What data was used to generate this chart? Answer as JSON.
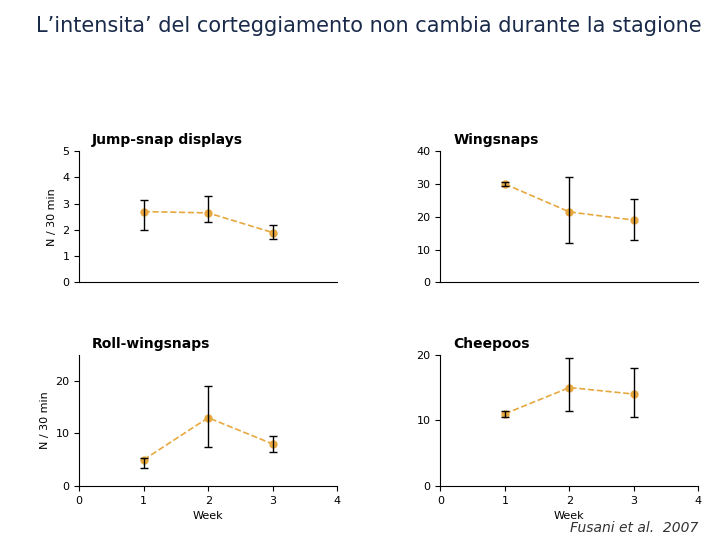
{
  "title": "L’intensita’ del corteggiamento non cambia durante la stagione",
  "attribution": "Fusani et al.  2007",
  "color": "#E8A840",
  "subplots": [
    {
      "title": "Jump-snap displays",
      "weeks": [
        1,
        2,
        3
      ],
      "values": [
        2.7,
        2.65,
        1.9
      ],
      "yerr_lo": [
        0.7,
        0.35,
        0.25
      ],
      "yerr_hi": [
        0.45,
        0.65,
        0.3
      ],
      "ylim": [
        0,
        5
      ],
      "yticks": [
        0,
        1,
        2,
        3,
        4,
        5
      ],
      "xlim": [
        0,
        4
      ],
      "xticks": []
    },
    {
      "title": "Wingsnaps",
      "weeks": [
        1,
        2,
        3
      ],
      "values": [
        30.0,
        21.5,
        19.0
      ],
      "yerr_lo": [
        0.5,
        9.5,
        6.0
      ],
      "yerr_hi": [
        0.5,
        10.5,
        6.5
      ],
      "ylim": [
        0,
        40
      ],
      "yticks": [
        0,
        10,
        20,
        30,
        40
      ],
      "xlim": [
        0,
        4
      ],
      "xticks": []
    },
    {
      "title": "Roll-wingsnaps",
      "weeks": [
        1,
        2,
        3
      ],
      "values": [
        5.0,
        13.0,
        8.0
      ],
      "yerr_lo": [
        1.5,
        5.5,
        1.5
      ],
      "yerr_hi": [
        0.3,
        6.0,
        1.5
      ],
      "ylim": [
        0,
        25
      ],
      "yticks": [
        0,
        10,
        20
      ],
      "xlim": [
        0,
        4
      ],
      "xticks": [
        0,
        1,
        2,
        3,
        4
      ]
    },
    {
      "title": "Cheepoos",
      "weeks": [
        1,
        2,
        3
      ],
      "values": [
        11.0,
        15.0,
        14.0
      ],
      "yerr_lo": [
        0.5,
        3.5,
        3.5
      ],
      "yerr_hi": [
        0.5,
        4.5,
        4.0
      ],
      "ylim": [
        0,
        20
      ],
      "yticks": [
        0,
        10,
        20
      ],
      "xlim": [
        0,
        4
      ],
      "xticks": [
        0,
        1,
        2,
        3,
        4
      ]
    }
  ],
  "ylabel": "N / 30 min",
  "xlabel": "Week",
  "background": "#ffffff",
  "title_fontsize": 15,
  "subtitle_fontsize": 10,
  "axis_fontsize": 8,
  "tick_fontsize": 8,
  "attribution_fontsize": 10,
  "title_color": "#1a2a4a"
}
